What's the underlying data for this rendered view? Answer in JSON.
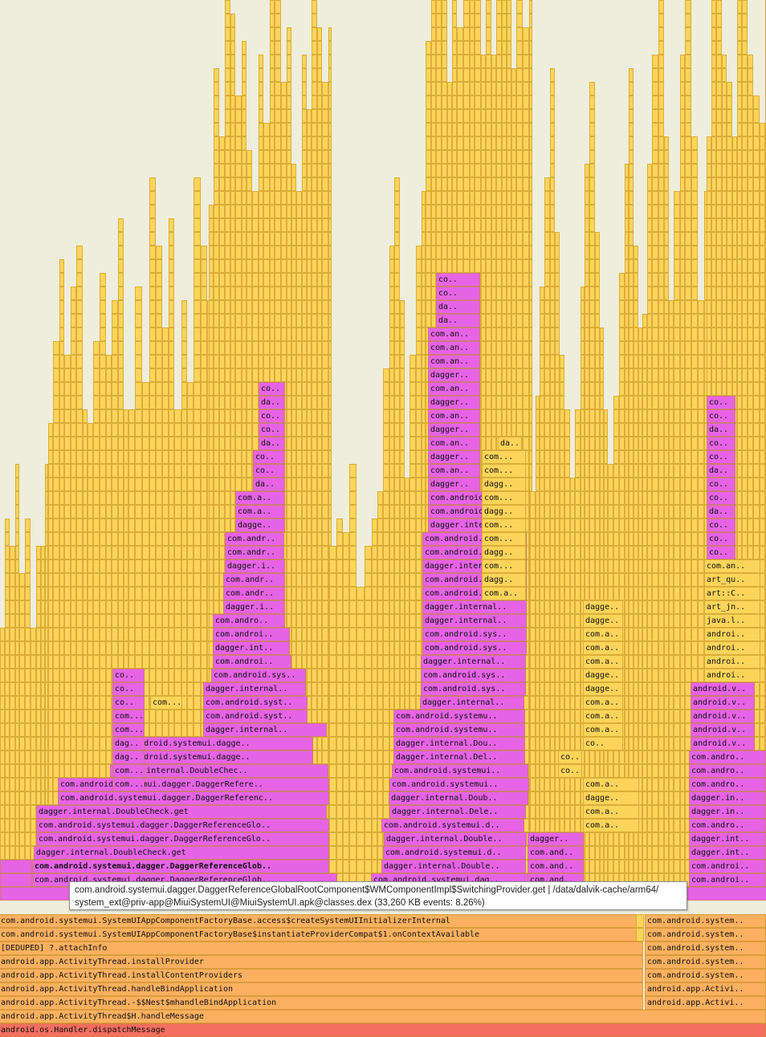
{
  "tooltip": {
    "line1": "com.android.systemui.dagger.DaggerReferenceGlobalRootComponent$WMComponentImpl$SwitchingProvider.get | /data/dalvik-cache/arm64/",
    "line2": "system_ext@priv-app@MiuiSystemUI@MiuiSystemUI.apk@classes.dex (33,260 KB events: 8.26%)"
  },
  "chart_data": {
    "type": "flamegraph",
    "colors": {
      "background": "#efeddc",
      "jit": "#fdd45a",
      "native": "#e663e6",
      "framework": "#fbb060",
      "root": "#f46f5f"
    },
    "root_frames": [
      {
        "label": "android.os.Handler.dispatchMessage",
        "kind": "root",
        "share": 1.0
      },
      {
        "label": "android.app.ActivityThread$H.handleMessage",
        "kind": "framework",
        "share": 1.0
      },
      {
        "label": "android.app.ActivityThread.-$$Nest$mhandleBindApplication",
        "kind": "framework",
        "share": 0.84
      },
      {
        "label": "android.app.ActivityThread.handleBindApplication",
        "kind": "framework",
        "share": 0.84
      },
      {
        "label": "android.app.ActivityThread.installContentProviders",
        "kind": "framework",
        "share": 0.84
      },
      {
        "label": "android.app.ActivityThread.installProvider",
        "kind": "framework",
        "share": 0.84
      },
      {
        "label": "[DEDUPED] ?.attachInfo",
        "kind": "framework",
        "share": 0.84
      },
      {
        "label": "com.android.systemui.SystemUIAppComponentFactoryBase$instantiateProviderCompat$1.onContextAvailable",
        "kind": "framework",
        "share": 0.84
      },
      {
        "label": "com.android.systemui.SystemUIAppComponentFactoryBase.access$createSystemUIInitializerInternal",
        "kind": "framework",
        "share": 0.84
      }
    ],
    "right_column_frames": [
      {
        "label": "android.app.Activi..",
        "kind": "framework"
      },
      {
        "label": "android.app.Activi..",
        "kind": "framework"
      },
      {
        "label": "com.android.system..",
        "kind": "framework"
      },
      {
        "label": "com.android.system..",
        "kind": "framework"
      },
      {
        "label": "com.android.system..",
        "kind": "framework"
      },
      {
        "label": "com.android.system..",
        "kind": "framework"
      },
      {
        "label": "com.android.system..",
        "kind": "framework"
      }
    ],
    "stack_labels": [
      "com.android.systemui.dagger.DaggerReferenceGlob..",
      "com.android.systemui.dagger.DaggerReferenceGlob..",
      "dagger.internal.DoubleCheck.get",
      "com.android.systemui.dagger.DaggerReferenceGlo..",
      "com.android.systemui.dagger.DaggerReferenceGlo..",
      "dagger.internal.DoubleCheck.get",
      "com.android.systemui.dagger.DaggerReferenc..",
      "com.android.systemui.dagger.DaggerRefere..",
      "dagger.internal.DoubleChec..",
      "com.android.systemui.dagge..",
      "com.android.systemui.dagge..",
      "dagger.internal..",
      "com.android.syst..",
      "com.android.syst..",
      "dagger.internal..",
      "com.android.sys..",
      "com.androi..",
      "dagger.int..",
      "com.androi..",
      "com.andro..",
      "dagger.i..",
      "com.andr..",
      "com.andr..",
      "dagger.i..",
      "com.andr..",
      "com.andr..",
      "dagge..",
      "com.a..",
      "com.a..",
      "da..",
      "co..",
      "co..",
      "da..",
      "co..",
      "co..",
      "da..",
      "co.."
    ],
    "stack2_labels": [
      "com.android.systemui.dag..",
      "dagger.internal.Double..",
      "com.android.systemui.d..",
      "dagger.internal.Double..",
      "com.android.systemui.d..",
      "dagger.internal.Dele..",
      "dagger.internal.Doub..",
      "com.android.systemui..",
      "com.android.systemui..",
      "dagger.internal.Del..",
      "dagger.internal.Dou..",
      "com.android.systemu..",
      "com.android.systemu..",
      "dagger.internal..",
      "com.android.sys..",
      "com.android.sys..",
      "dagger.internal..",
      "com.android.sys..",
      "com.android.sys..",
      "dagger.internal..",
      "dagger.internal..",
      "com.android.sys..",
      "com.android.sys..",
      "dagger.internal..",
      "com.android.sys..",
      "com.android.sys..",
      "dagger.interna..",
      "com.android.sy..",
      "com.android.s..",
      "dagger..",
      "com.an..",
      "dagger..",
      "com.an..",
      "dagger..",
      "com.an..",
      "dagger..",
      "com.an..",
      "dagger..",
      "com.an..",
      "com.an..",
      "com.an..",
      "da..",
      "da..",
      "co..",
      "co.."
    ],
    "stack2b_labels": [
      "com.and..",
      "com.and..",
      "com.and..",
      "dagger..",
      "com.a..",
      "com.a..",
      "dagge..",
      "com.a..",
      "co..",
      "co..",
      "co..",
      "com.a..",
      "com.a..",
      "com.a..",
      "dagge..",
      "dagge..",
      "com.a..",
      "com.a..",
      "com.a..",
      "dagge..",
      "dagge..",
      "com.a..",
      "dagg..",
      "com...",
      "dagg..",
      "com...",
      "com...",
      "dagg..",
      "com...",
      "dagg..",
      "com...",
      "com...",
      "da.."
    ],
    "stack3_labels": [
      "com.androi..",
      "com.androi..",
      "dagger.int..",
      "dagger.int..",
      "com.andro..",
      "dagger.in..",
      "dagger.in..",
      "com.andro..",
      "com.andro..",
      "com.andro..",
      "android.v..",
      "android.v..",
      "android.v..",
      "android.v..",
      "android.v..",
      "androi..",
      "androi..",
      "androi..",
      "androi..",
      "java.l..",
      "art_jn..",
      "art::C..",
      "art_qu..",
      "com.an..",
      "co..",
      "co..",
      "co..",
      "da..",
      "co..",
      "co..",
      "da..",
      "co..",
      "co..",
      "da..",
      "co..",
      "co.."
    ],
    "left_stack_small": [
      "com...",
      "com...",
      "dag..",
      "dag..",
      "com...",
      "com...",
      "co..",
      "co..",
      "co.."
    ]
  }
}
